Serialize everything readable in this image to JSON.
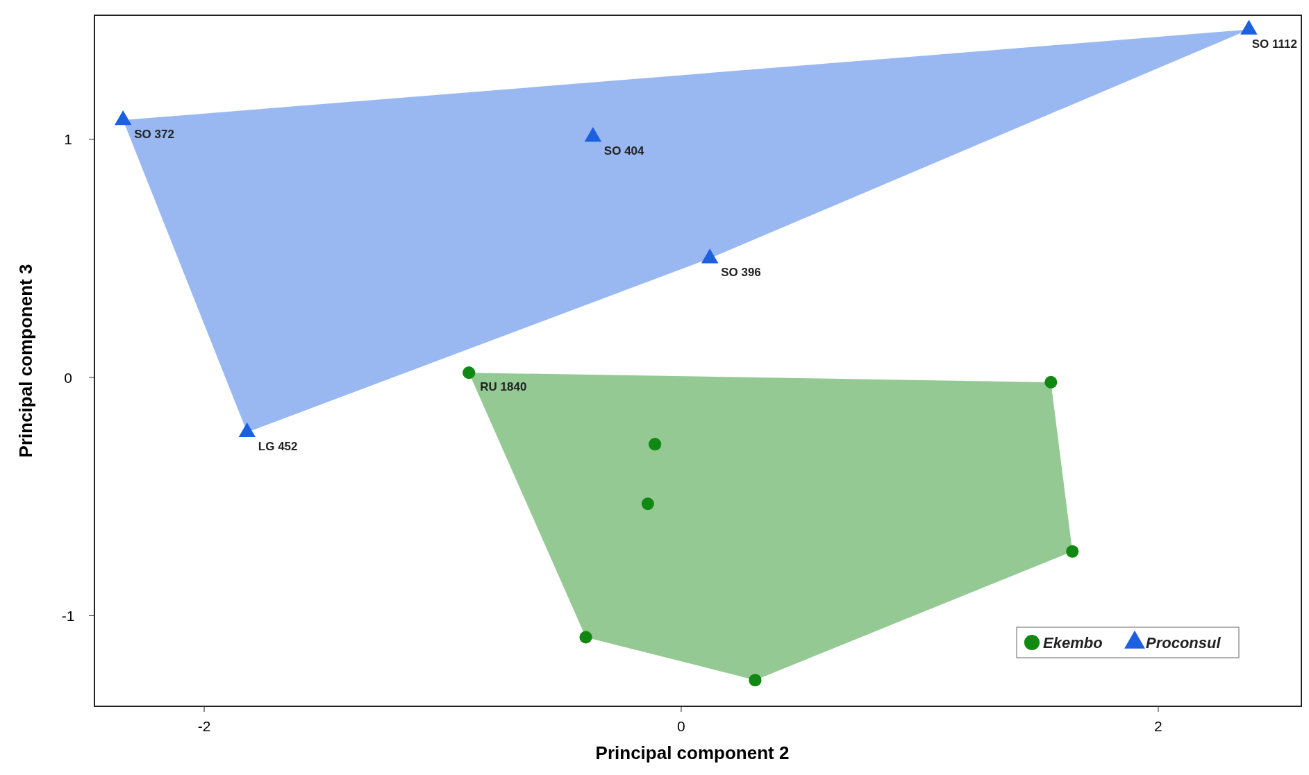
{
  "chart_data": {
    "type": "scatter",
    "xlabel": "Principal component 2",
    "ylabel": "Principal component 3",
    "xlim": [
      -2.46,
      2.6
    ],
    "ylim": [
      -1.38,
      1.52
    ],
    "xticks": [
      -2,
      0,
      2
    ],
    "yticks": [
      -1,
      0,
      1
    ],
    "grid": false,
    "legend": "bottom right",
    "series": [
      {
        "name": "Ekembo",
        "color": "#118811",
        "marker": "circle",
        "x": [
          -0.89,
          1.55,
          -0.11,
          -0.14,
          1.64,
          -0.4,
          0.31
        ],
        "values": [
          0.02,
          -0.02,
          -0.28,
          -0.53,
          -0.73,
          -1.09,
          -1.27
        ]
      },
      {
        "name": "Proconsul",
        "color": "#1c5fe0",
        "marker": "triangle",
        "x": [
          2.38,
          -2.34,
          -0.37,
          0.12,
          -1.82
        ],
        "values": [
          1.46,
          1.08,
          1.01,
          0.5,
          -0.23
        ]
      }
    ],
    "annotations": [
      {
        "text": "SO 1112",
        "x": 2.38,
        "y": 1.46
      },
      {
        "text": "SO 372",
        "x": -2.34,
        "y": 1.08
      },
      {
        "text": "SO 404",
        "x": -0.37,
        "y": 1.01
      },
      {
        "text": "SO 396",
        "x": 0.12,
        "y": 0.5
      },
      {
        "text": "LG 452",
        "x": -1.82,
        "y": -0.23
      },
      {
        "text": "RU 1840",
        "x": -0.89,
        "y": 0.02
      }
    ]
  }
}
